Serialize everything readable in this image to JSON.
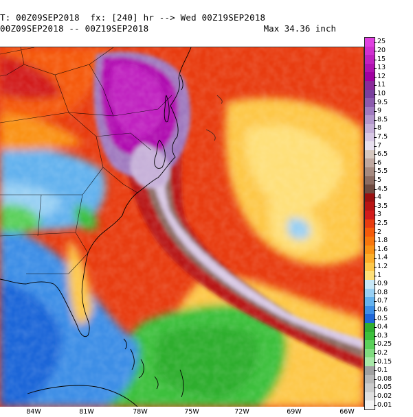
{
  "header": {
    "line1": "T: 00Z09SEP2018  fx: [240] hr --> Wed 00Z19SEP2018",
    "line2": "00Z09SEP2018 -- 00Z19SEP2018",
    "max_label": "Max 34.36 inch"
  },
  "colorbar": {
    "units": "inch",
    "levels": [
      {
        "label": "25",
        "color": "#e040e0"
      },
      {
        "label": "20",
        "color": "#d030d0"
      },
      {
        "label": "15",
        "color": "#c020c0"
      },
      {
        "label": "13",
        "color": "#b010b0"
      },
      {
        "label": "12",
        "color": "#a000a0"
      },
      {
        "label": "11",
        "color": "#8a2a9a"
      },
      {
        "label": "10",
        "color": "#7a3f9e"
      },
      {
        "label": "9.5",
        "color": "#8c5aae"
      },
      {
        "label": "9",
        "color": "#a07abf"
      },
      {
        "label": "8.5",
        "color": "#b497cc"
      },
      {
        "label": "8",
        "color": "#c6b0d8"
      },
      {
        "label": "7.5",
        "color": "#d8c8e4"
      },
      {
        "label": "7",
        "color": "#e8e0ee"
      },
      {
        "label": "6.5",
        "color": "#d6c8c0"
      },
      {
        "label": "6",
        "color": "#bfa8a0"
      },
      {
        "label": "5.5",
        "color": "#a68a80"
      },
      {
        "label": "5",
        "color": "#8c6c62"
      },
      {
        "label": "4.5",
        "color": "#6e4a40"
      },
      {
        "label": "4",
        "color": "#9a1010"
      },
      {
        "label": "3.5",
        "color": "#b81414"
      },
      {
        "label": "3",
        "color": "#d21c1c"
      },
      {
        "label": "2.5",
        "color": "#e83c10"
      },
      {
        "label": "2",
        "color": "#f55a0a"
      },
      {
        "label": "1.8",
        "color": "#f8760c"
      },
      {
        "label": "1.6",
        "color": "#fa9214"
      },
      {
        "label": "1.4",
        "color": "#fcae2a"
      },
      {
        "label": "1.2",
        "color": "#fdc84a"
      },
      {
        "label": "1",
        "color": "#fedf78"
      },
      {
        "label": "0.9",
        "color": "#c8e8f8"
      },
      {
        "label": "0.8",
        "color": "#98d0f4"
      },
      {
        "label": "0.7",
        "color": "#64b2ee"
      },
      {
        "label": "0.6",
        "color": "#3c8ee6"
      },
      {
        "label": "0.5",
        "color": "#1e66d8"
      },
      {
        "label": "0.4",
        "color": "#2fae2f"
      },
      {
        "label": "0.3",
        "color": "#3cc03c"
      },
      {
        "label": "0.25",
        "color": "#5ad05a"
      },
      {
        "label": "0.2",
        "color": "#80dc80"
      },
      {
        "label": "0.15",
        "color": "#a8e8a8"
      },
      {
        "label": "0.1",
        "color": "#a0a0a0"
      },
      {
        "label": "0.08",
        "color": "#b8b8b8"
      },
      {
        "label": "0.05",
        "color": "#cccccc"
      },
      {
        "label": "0.02",
        "color": "#e0e0e0"
      },
      {
        "label": "0.01",
        "color": "#f4f4f4"
      }
    ]
  },
  "longitude_labels": [
    "84W",
    "81W",
    "78W",
    "75W",
    "72W",
    "69W",
    "66W"
  ]
}
